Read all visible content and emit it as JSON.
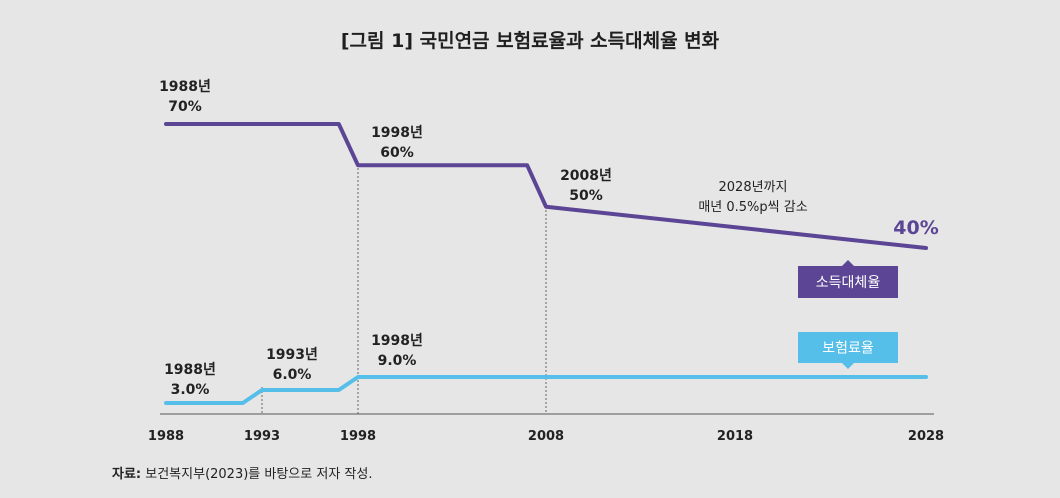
{
  "title": "[그림 1] 국민연금 보험료율과 소득대체율 변화",
  "source": {
    "label": "자료:",
    "text": "보건복지부(2023)를 바탕으로 저자 작성."
  },
  "colors": {
    "income_replacement": "#5b4594",
    "contribution": "#55bfe9",
    "axis": "#555555",
    "background": "#e6e6e6"
  },
  "chart_data": {
    "type": "line",
    "title": "[그림 1] 국민연금 보험료율과 소득대체율 변화",
    "xlabel": "",
    "ylabel": "",
    "x_ticks": [
      "1988",
      "1993",
      "1998",
      "2008",
      "2018",
      "2028"
    ],
    "xlim": [
      1988,
      2028
    ],
    "grid": false,
    "series": [
      {
        "name": "소득대체율",
        "unit": "%",
        "points": [
          [
            1988,
            70
          ],
          [
            1997,
            70
          ],
          [
            1998,
            60
          ],
          [
            2007,
            60
          ],
          [
            2008,
            50
          ],
          [
            2028,
            40
          ]
        ]
      },
      {
        "name": "보험료율",
        "unit": "%",
        "points": [
          [
            1988,
            3.0
          ],
          [
            1992,
            3.0
          ],
          [
            1993,
            6.0
          ],
          [
            1997,
            6.0
          ],
          [
            1998,
            9.0
          ],
          [
            2028,
            9.0
          ]
        ]
      }
    ],
    "annotations": [
      {
        "year": "1988년",
        "value": "70%"
      },
      {
        "year": "1998년",
        "value": "60%"
      },
      {
        "year": "2008년",
        "value": "50%"
      },
      {
        "line1": "2028년까지",
        "line2": "매년 0.5%p씩 감소"
      },
      {
        "value": "40%"
      },
      {
        "year": "1988년",
        "value": "3.0%"
      },
      {
        "year": "1993년",
        "value": "6.0%"
      },
      {
        "year": "1998년",
        "value": "9.0%"
      }
    ],
    "legend": [
      "소득대체율",
      "보험료율"
    ]
  }
}
